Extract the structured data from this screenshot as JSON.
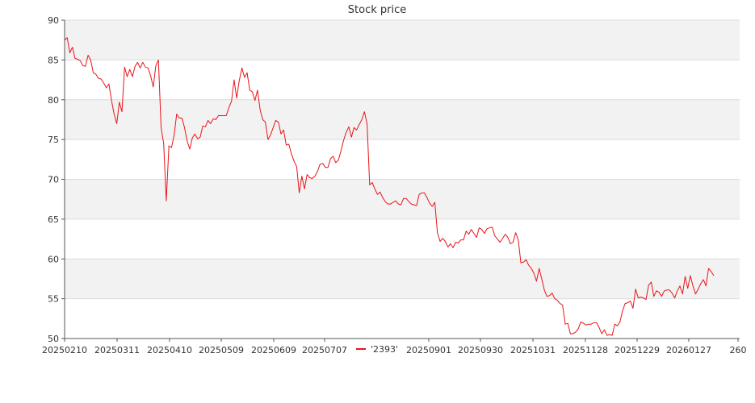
{
  "chart_data": {
    "type": "line",
    "title": "Stock price",
    "xlabel": "",
    "ylabel": "",
    "ylim": [
      50,
      90
    ],
    "yticks": [
      50,
      55,
      60,
      65,
      70,
      75,
      80,
      85,
      90
    ],
    "xticks": [
      "20250210",
      "20250311",
      "20250410",
      "20250509",
      "20250609",
      "20250707",
      "20250901",
      "20250930",
      "20251031",
      "20251128",
      "20251229",
      "20260127",
      "260"
    ],
    "grid": true,
    "legend_position": "bottom-center",
    "line_color": "#e8141a",
    "band_color": "#f2f2f2",
    "series": [
      {
        "name": "'2393'",
        "values": [
          87.5,
          87.8,
          85.9,
          86.6,
          85.2,
          85.1,
          84.9,
          84.3,
          84.2,
          85.6,
          85.0,
          83.4,
          83.2,
          82.7,
          82.6,
          82.1,
          81.5,
          82.0,
          79.9,
          78.2,
          77.0,
          79.7,
          78.5,
          84.1,
          82.9,
          83.8,
          82.9,
          84.2,
          84.7,
          84.0,
          84.7,
          84.1,
          84.0,
          83.0,
          81.6,
          84.3,
          85.0,
          76.5,
          74.5,
          67.3,
          74.2,
          74.0,
          75.5,
          78.2,
          77.7,
          77.7,
          76.5,
          74.8,
          73.8,
          75.2,
          75.7,
          75.1,
          75.3,
          76.7,
          76.6,
          77.4,
          77.0,
          77.6,
          77.5,
          78.0,
          78.0,
          78.0,
          78.0,
          79.0,
          79.8,
          82.5,
          80.2,
          82.4,
          84.0,
          82.8,
          83.4,
          81.2,
          81.0,
          79.9,
          81.2,
          78.7,
          77.5,
          77.2,
          75.0,
          75.6,
          76.5,
          77.4,
          77.2,
          75.7,
          76.2,
          74.3,
          74.4,
          73.2,
          72.3,
          71.6,
          68.3,
          70.4,
          68.8,
          70.6,
          70.2,
          70.1,
          70.4,
          71.0,
          71.9,
          72.0,
          71.5,
          71.5,
          72.6,
          72.9,
          72.1,
          72.4,
          73.6,
          74.9,
          75.9,
          76.6,
          75.3,
          76.5,
          76.2,
          76.9,
          77.5,
          78.5,
          77.0,
          69.3,
          69.6,
          68.8,
          68.1,
          68.4,
          67.7,
          67.2,
          66.9,
          66.9,
          67.1,
          67.3,
          66.9,
          66.8,
          67.6,
          67.6,
          67.2,
          66.9,
          66.8,
          66.7,
          68.1,
          68.3,
          68.3,
          67.7,
          67.0,
          66.6,
          67.1,
          63.3,
          62.2,
          62.6,
          62.2,
          61.5,
          61.9,
          61.4,
          62.1,
          62.0,
          62.4,
          62.4,
          63.5,
          63.1,
          63.7,
          63.2,
          62.7,
          63.9,
          63.7,
          63.2,
          63.8,
          63.9,
          64.0,
          62.9,
          62.5,
          62.1,
          62.6,
          63.1,
          62.7,
          61.9,
          62.1,
          63.3,
          62.4,
          59.5,
          59.6,
          59.9,
          59.2,
          58.8,
          58.2,
          57.2,
          58.8,
          57.5,
          56.1,
          55.3,
          55.4,
          55.7,
          55.0,
          54.8,
          54.4,
          54.2,
          51.8,
          51.9,
          50.6,
          50.6,
          50.8,
          51.2,
          52.1,
          51.9,
          51.7,
          51.8,
          51.8,
          52.0,
          52.0,
          51.4,
          50.6,
          51.1,
          50.4,
          50.5,
          50.4,
          51.8,
          51.6,
          52.1,
          53.5,
          54.4,
          54.5,
          54.7,
          53.8,
          56.2,
          55.1,
          55.2,
          55.1,
          54.9,
          56.7,
          57.1,
          55.3,
          56.0,
          55.8,
          55.3,
          56.0,
          56.1,
          56.1,
          55.7,
          55.1,
          56.0,
          56.6,
          55.6,
          57.8,
          56.3,
          57.9,
          56.6,
          55.6,
          56.2,
          56.9,
          57.4,
          56.6,
          58.8,
          58.4,
          57.9
        ]
      }
    ]
  }
}
